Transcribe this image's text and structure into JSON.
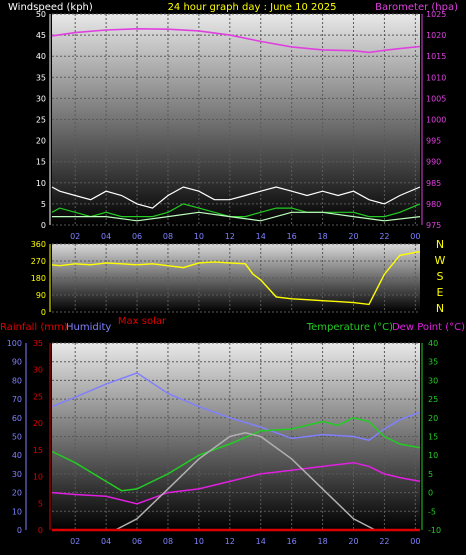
{
  "chart_data": [
    {
      "type": "line",
      "title": "24 hour graph day : June 10 2025",
      "x_ticks": [
        "02",
        "04",
        "06",
        "08",
        "10",
        "12",
        "14",
        "16",
        "18",
        "20",
        "22",
        "00"
      ],
      "x_range_hours": [
        0.5,
        24.3
      ],
      "left_axis": {
        "label": "Windspeed (kph)",
        "ticks": [
          0,
          5,
          10,
          15,
          20,
          25,
          30,
          35,
          40,
          45,
          50
        ],
        "ylim": [
          0,
          50
        ]
      },
      "right_axis": {
        "label": "Barometer (hpa)",
        "ticks": [
          975,
          980,
          985,
          990,
          995,
          1000,
          1005,
          1010,
          1015,
          1020,
          1025
        ],
        "ylim": [
          975,
          1025
        ]
      },
      "series": [
        {
          "name": "Barometer",
          "axis": "right",
          "color": "#e040e0",
          "x": [
            0.5,
            2,
            4,
            6,
            8,
            10,
            12,
            14,
            16,
            18,
            20,
            21,
            22,
            23,
            24.3
          ],
          "values": [
            1019.8,
            1020.6,
            1021.2,
            1021.5,
            1021.4,
            1021,
            1020,
            1018.5,
            1017.2,
            1016.5,
            1016.3,
            1015.9,
            1016.4,
            1016.8,
            1017.3
          ]
        },
        {
          "name": "Wind gust",
          "axis": "left",
          "color": "#ffffff",
          "x": [
            0.5,
            1,
            2,
            3,
            4,
            5,
            6,
            7,
            8,
            9,
            10,
            11,
            12,
            13,
            14,
            15,
            16,
            17,
            18,
            19,
            20,
            21,
            22,
            23,
            24.3
          ],
          "values": [
            9,
            8,
            7,
            6,
            8,
            7,
            5,
            4,
            7,
            9,
            8,
            6,
            6,
            7,
            8,
            9,
            8,
            7,
            8,
            7,
            8,
            6,
            5,
            7,
            9
          ]
        },
        {
          "name": "Wind speed",
          "axis": "left",
          "color": "#22cc22",
          "x": [
            0.5,
            1,
            2,
            3,
            4,
            5,
            6,
            7,
            8,
            9,
            10,
            11,
            12,
            13,
            14,
            15,
            16,
            17,
            18,
            19,
            20,
            21,
            22,
            23,
            24.3
          ],
          "values": [
            3,
            4,
            3,
            2,
            3,
            2,
            2,
            2,
            3,
            5,
            4,
            3,
            2,
            2,
            3,
            4,
            4,
            3,
            3,
            3,
            3,
            2,
            2,
            3,
            5
          ]
        },
        {
          "name": "Wind average",
          "axis": "left",
          "color": "#bfffbf",
          "x": [
            0.5,
            2,
            4,
            6,
            8,
            10,
            12,
            14,
            16,
            18,
            20,
            22,
            24.3
          ],
          "values": [
            2,
            2,
            2,
            1,
            2,
            3,
            2,
            1,
            3,
            3,
            2,
            1,
            2
          ]
        }
      ]
    },
    {
      "type": "scatter",
      "x_ticks": [
        "02",
        "04",
        "06",
        "08",
        "10",
        "12",
        "14",
        "16",
        "18",
        "20",
        "22",
        "00"
      ],
      "left_axis": {
        "ticks": [
          0,
          90,
          180,
          270,
          360
        ],
        "ylim": [
          0,
          360
        ]
      },
      "right_labels": [
        "N",
        "W",
        "S",
        "E",
        "N"
      ],
      "series": [
        {
          "name": "Wind direction",
          "color": "#ffff00",
          "x": [
            0.5,
            1,
            2,
            3,
            4,
            5,
            6,
            7,
            8,
            9,
            10,
            11,
            12,
            13,
            13.5,
            14,
            15,
            16,
            17,
            18,
            19,
            20,
            21,
            22,
            23,
            24.3
          ],
          "values": [
            250,
            245,
            255,
            250,
            260,
            255,
            250,
            255,
            245,
            235,
            260,
            265,
            260,
            255,
            200,
            170,
            80,
            70,
            65,
            60,
            55,
            50,
            40,
            200,
            300,
            320
          ]
        }
      ]
    },
    {
      "type": "line",
      "x_ticks": [
        "02",
        "04",
        "06",
        "08",
        "10",
        "12",
        "14",
        "16",
        "18",
        "20",
        "22",
        "00"
      ],
      "axes": {
        "humidity": {
          "label": "Humidity",
          "ticks": [
            0,
            10,
            20,
            30,
            40,
            50,
            60,
            70,
            80,
            90,
            100
          ],
          "ylim": [
            0,
            100
          ]
        },
        "rainfall": {
          "label": "Rainfall (mm)",
          "ticks": [
            0,
            5,
            10,
            15,
            20,
            25,
            30,
            35
          ],
          "ylim": [
            0,
            35
          ]
        },
        "temperature": {
          "label": "Temperature (°C)",
          "ticks": [
            -10,
            -5,
            0,
            5,
            10,
            15,
            20,
            25,
            30,
            35,
            40
          ],
          "ylim": [
            -10,
            40
          ]
        },
        "dewpoint": {
          "label": "Dew Point (°C)"
        }
      },
      "labels": {
        "max_solar": "Max solar"
      },
      "series": [
        {
          "name": "Humidity",
          "axis": "humidity",
          "color": "#8080ff",
          "x": [
            0.5,
            2,
            4,
            6,
            8,
            10,
            12,
            14,
            16,
            18,
            20,
            21,
            22,
            23,
            24.3
          ],
          "values": [
            66,
            71,
            78,
            84,
            73,
            66,
            60,
            55,
            49,
            51,
            50,
            48,
            54,
            59,
            63
          ]
        },
        {
          "name": "Temperature",
          "axis": "temperature",
          "color": "#22cc22",
          "x": [
            0.5,
            2,
            4,
            5,
            6,
            8,
            10,
            12,
            14,
            16,
            18,
            19,
            20,
            21,
            22,
            23,
            24.3
          ],
          "values": [
            11,
            8,
            3,
            0.5,
            1,
            5,
            10,
            13,
            16.5,
            17,
            19,
            18,
            20,
            19,
            15,
            13,
            12
          ]
        },
        {
          "name": "Dew Point",
          "axis": "temperature",
          "color": "#e020e0",
          "x": [
            0.5,
            2,
            4,
            6,
            8,
            10,
            12,
            14,
            16,
            18,
            20,
            21,
            22,
            23,
            24.3
          ],
          "values": [
            0,
            -0.5,
            -1,
            -3,
            0,
            1,
            3,
            5,
            6,
            7,
            8,
            7,
            5,
            4,
            3
          ]
        },
        {
          "name": "Max solar",
          "axis": "temperature",
          "color": "#b0b0b0",
          "x": [
            4.6,
            6,
            8,
            10,
            12,
            13,
            14,
            16,
            18,
            20,
            21.4
          ],
          "values": [
            -10,
            -7,
            1,
            9,
            15,
            16,
            15,
            9,
            1,
            -7,
            -10
          ]
        },
        {
          "name": "Rainfall",
          "axis": "rainfall",
          "color": "#dd0000",
          "x": [
            0.5,
            24.3
          ],
          "values": [
            0,
            0
          ]
        }
      ]
    }
  ]
}
